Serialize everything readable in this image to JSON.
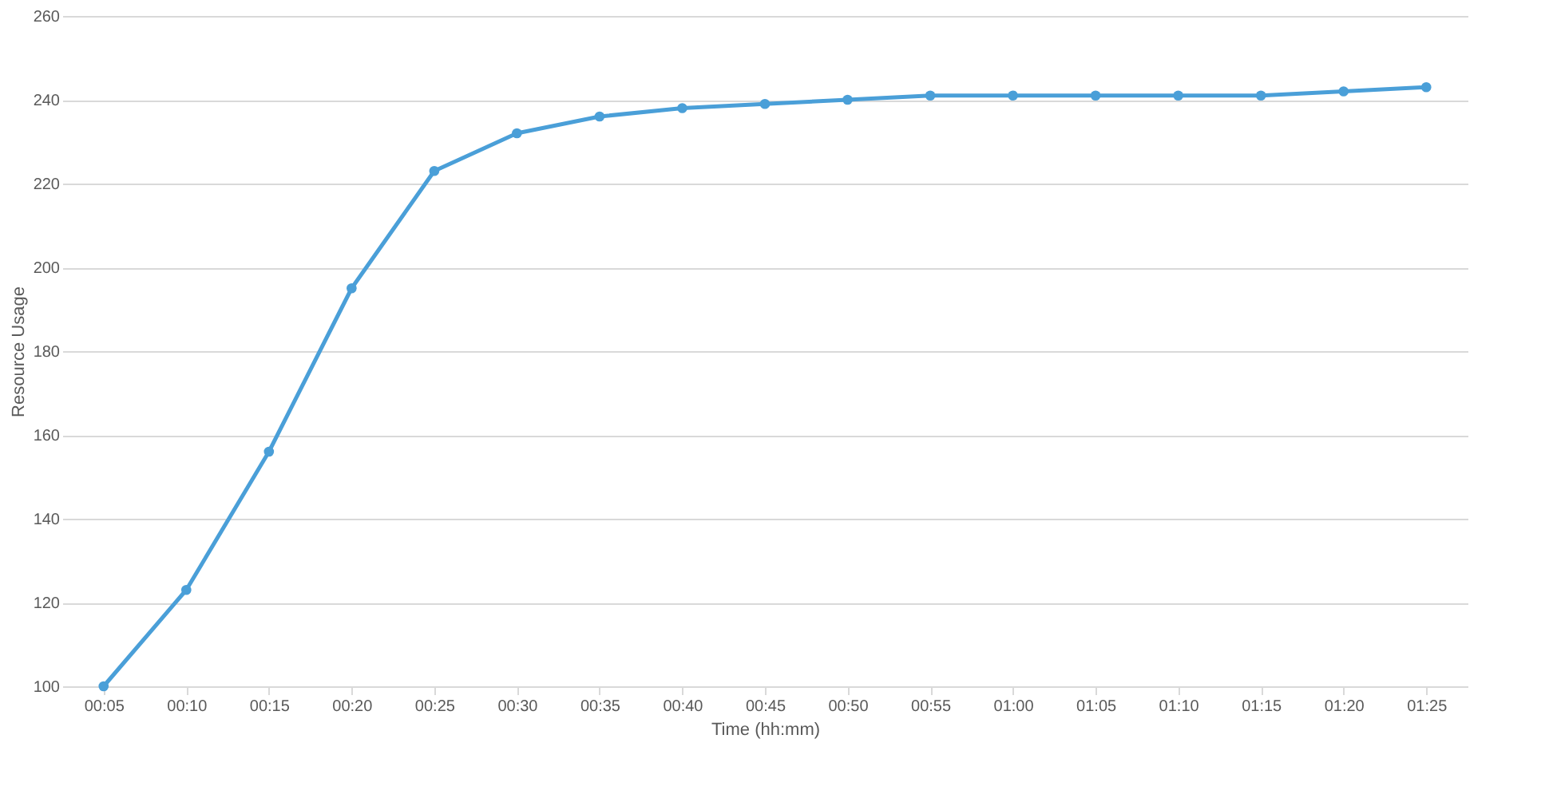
{
  "chart_data": {
    "type": "line",
    "xlabel": "Time (hh:mm)",
    "ylabel": "Resource Usage",
    "categories": [
      "00:05",
      "00:10",
      "00:15",
      "00:20",
      "00:25",
      "00:30",
      "00:35",
      "00:40",
      "00:45",
      "00:50",
      "00:55",
      "01:00",
      "01:05",
      "01:10",
      "01:15",
      "01:20",
      "01:25"
    ],
    "series": [
      {
        "color": "#4a9fd8",
        "values": [
          100,
          123,
          156,
          195,
          223,
          232,
          236,
          238,
          239,
          240,
          241,
          241,
          241,
          241,
          241,
          242,
          243
        ]
      }
    ],
    "ylim": [
      100,
      260
    ],
    "yticks": [
      100,
      120,
      140,
      160,
      180,
      200,
      220,
      240,
      260
    ],
    "grid": "y",
    "marker": "circle",
    "line_style": "solid"
  }
}
